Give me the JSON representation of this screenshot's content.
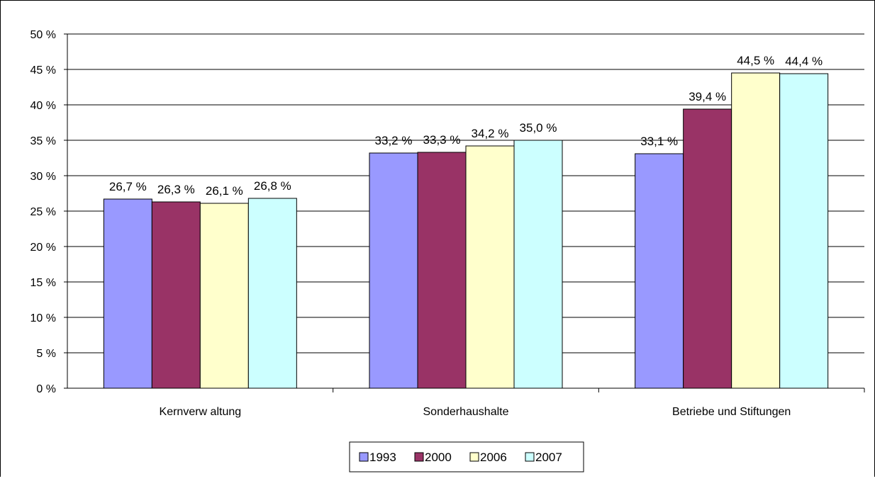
{
  "chart_data": {
    "type": "bar",
    "categories": [
      "Kernverw altung",
      "Sonderhaushalte",
      "Betriebe und Stiftungen"
    ],
    "series": [
      {
        "name": "1993",
        "values": [
          26.7,
          33.2,
          33.1
        ],
        "labels": [
          "26,7 %",
          "33,2 %",
          "33,1 %"
        ],
        "color": "#9999FF"
      },
      {
        "name": "2000",
        "values": [
          26.3,
          33.3,
          39.4
        ],
        "labels": [
          "26,3 %",
          "33,3 %",
          "39,4 %"
        ],
        "color": "#993366"
      },
      {
        "name": "2006",
        "values": [
          26.1,
          34.2,
          44.5
        ],
        "labels": [
          "26,1 %",
          "34,2 %",
          "44,5 %"
        ],
        "color": "#FFFFCC"
      },
      {
        "name": "2007",
        "values": [
          26.8,
          35.0,
          44.4
        ],
        "labels": [
          "26,8 %",
          "35,0 %",
          "44,4 %"
        ],
        "color": "#CCFFFF"
      }
    ],
    "ylim": [
      0,
      50
    ],
    "yticks": [
      0,
      5,
      10,
      15,
      20,
      25,
      30,
      35,
      40,
      45,
      50
    ],
    "ytick_labels": [
      "0 %",
      "5 %",
      "10 %",
      "15 %",
      "20 %",
      "25 %",
      "30 %",
      "35 %",
      "40 %",
      "45 %",
      "50 %"
    ],
    "grid": true,
    "legend": "bottom-center",
    "title": "",
    "xlabel": "",
    "ylabel": ""
  }
}
